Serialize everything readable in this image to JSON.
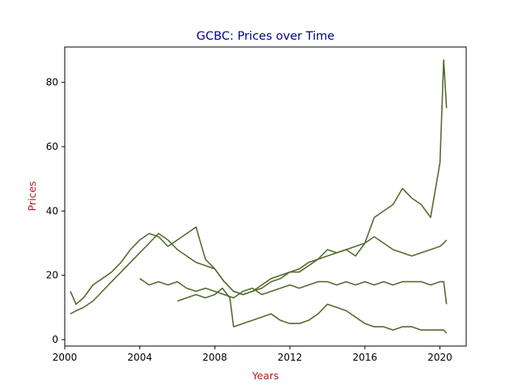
{
  "chart_data": {
    "type": "line",
    "title": "GCBC: Prices over Time",
    "xlabel": "Years",
    "ylabel": "Prices",
    "xlim": [
      2000.0,
      2021.4
    ],
    "ylim": [
      -2,
      91
    ],
    "xticks": [
      2000,
      2004,
      2008,
      2012,
      2016,
      2020
    ],
    "yticks": [
      0,
      20,
      40,
      60,
      80
    ],
    "grid": false,
    "colors": {
      "line": "#556b2f",
      "title": "#00008b",
      "axis_label": "#b22222",
      "axis": "#000000"
    },
    "series": [
      {
        "x": [
          2000.3,
          2000.6,
          2001.0,
          2001.5,
          2002.0,
          2002.5,
          2003.0,
          2003.5,
          2004.0,
          2004.5,
          2005.0,
          2005.5,
          2006.0,
          2006.5,
          2007.0,
          2007.5,
          2008.0,
          2008.5,
          2009.0,
          2009.5,
          2010.0,
          2010.5,
          2011.0,
          2011.5,
          2012.0,
          2012.5,
          2013.0,
          2013.5,
          2014.0,
          2014.5,
          2015.0,
          2015.5,
          2016.0,
          2016.5,
          2017.0,
          2017.5,
          2018.0,
          2018.5,
          2019.0,
          2019.5,
          2020.0,
          2020.2,
          2020.35
        ],
        "values": [
          15,
          11,
          13,
          17,
          19,
          21,
          24,
          28,
          31,
          33,
          32,
          29,
          31,
          33,
          35,
          25,
          22,
          18,
          15,
          14,
          15,
          16,
          18,
          19,
          21,
          21,
          23,
          25,
          28,
          27,
          28,
          26,
          30,
          38,
          40,
          42,
          47,
          44,
          42,
          38,
          55,
          87,
          72
        ]
      },
      {
        "x": [
          2000.3,
          2000.6,
          2001.0,
          2001.5,
          2002.0,
          2002.5,
          2003.0,
          2003.5,
          2004.0,
          2004.5,
          2005.0,
          2005.5,
          2006.0,
          2006.5,
          2007.0,
          2007.5,
          2008.0,
          2008.5,
          2009.0,
          2009.5,
          2010.0,
          2010.5,
          2011.0,
          2011.5,
          2012.0,
          2012.5,
          2013.0,
          2013.5,
          2014.0,
          2014.5,
          2015.0,
          2015.5,
          2016.0,
          2016.5,
          2017.0,
          2017.5,
          2018.0,
          2018.5,
          2019.0,
          2019.5,
          2020.0,
          2020.2,
          2020.35
        ],
        "values": [
          8,
          9,
          10,
          12,
          15,
          18,
          21,
          24,
          27,
          30,
          33,
          31,
          28,
          26,
          24,
          23,
          22,
          18,
          15,
          14,
          15,
          17,
          19,
          20,
          21,
          22,
          24,
          25,
          26,
          27,
          28,
          29,
          30,
          32,
          30,
          28,
          27,
          26,
          27,
          28,
          29,
          30,
          31
        ]
      },
      {
        "x": [
          2004.0,
          2004.5,
          2005.0,
          2005.5,
          2006.0,
          2006.5,
          2007.0,
          2007.5,
          2008.0,
          2008.5,
          2009.0,
          2009.5,
          2010.0,
          2010.5,
          2011.0,
          2011.5,
          2012.0,
          2012.5,
          2013.0,
          2013.5,
          2014.0,
          2014.5,
          2015.0,
          2015.5,
          2016.0,
          2016.5,
          2017.0,
          2017.5,
          2018.0,
          2018.5,
          2019.0,
          2019.5,
          2020.0,
          2020.2,
          2020.35
        ],
        "values": [
          19,
          17,
          18,
          17,
          18,
          16,
          15,
          16,
          15,
          14,
          13,
          15,
          16,
          14,
          15,
          16,
          17,
          16,
          17,
          18,
          18,
          17,
          18,
          17,
          18,
          17,
          18,
          17,
          18,
          18,
          18,
          17,
          18,
          18,
          11
        ]
      },
      {
        "x": [
          2006.0,
          2006.5,
          2007.0,
          2007.5,
          2008.0,
          2008.4,
          2008.8,
          2009.0,
          2009.5,
          2010.0,
          2010.5,
          2011.0,
          2011.5,
          2012.0,
          2012.5,
          2013.0,
          2013.5,
          2014.0,
          2014.5,
          2015.0,
          2015.5,
          2016.0,
          2016.5,
          2017.0,
          2017.5,
          2018.0,
          2018.5,
          2019.0,
          2019.5,
          2020.0,
          2020.2,
          2020.35
        ],
        "values": [
          12,
          13,
          14,
          13,
          14,
          16,
          13,
          4,
          5,
          6,
          7,
          8,
          6,
          5,
          5,
          6,
          8,
          11,
          10,
          9,
          7,
          5,
          4,
          4,
          3,
          4,
          4,
          3,
          3,
          3,
          3,
          2
        ]
      }
    ]
  }
}
